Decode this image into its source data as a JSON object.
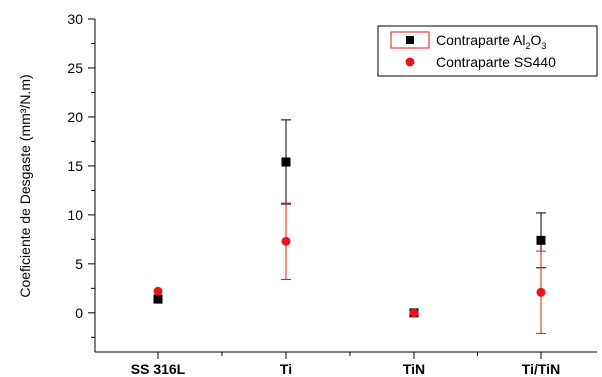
{
  "chart_data": {
    "type": "scatter",
    "title": "",
    "xlabel": "",
    "ylabel": "Coeficiente de Desgaste (mm³/N.m)",
    "categories": [
      "SS 316L",
      "Ti",
      "TiN",
      "Ti/TiN"
    ],
    "ylim": [
      -4,
      30
    ],
    "yticks": [
      0,
      5,
      10,
      15,
      20,
      25,
      30
    ],
    "grid": false,
    "legend_position": "top-right",
    "series": [
      {
        "name": "Contraparte Al₂O₃",
        "legend_main": "Contraparte Al",
        "legend_sub1": "2",
        "legend_mid": "O",
        "legend_sub2": "3",
        "marker": "square",
        "color": "#000000",
        "values": [
          1.4,
          15.4,
          0.0,
          7.4
        ],
        "errors": [
          0.0,
          4.3,
          0.0,
          2.8
        ]
      },
      {
        "name": "Contraparte SS440",
        "marker": "circle",
        "color": "#e8141a",
        "values": [
          2.2,
          7.3,
          0.0,
          2.1
        ],
        "errors": [
          0.0,
          3.9,
          0.0,
          4.2
        ]
      }
    ]
  }
}
